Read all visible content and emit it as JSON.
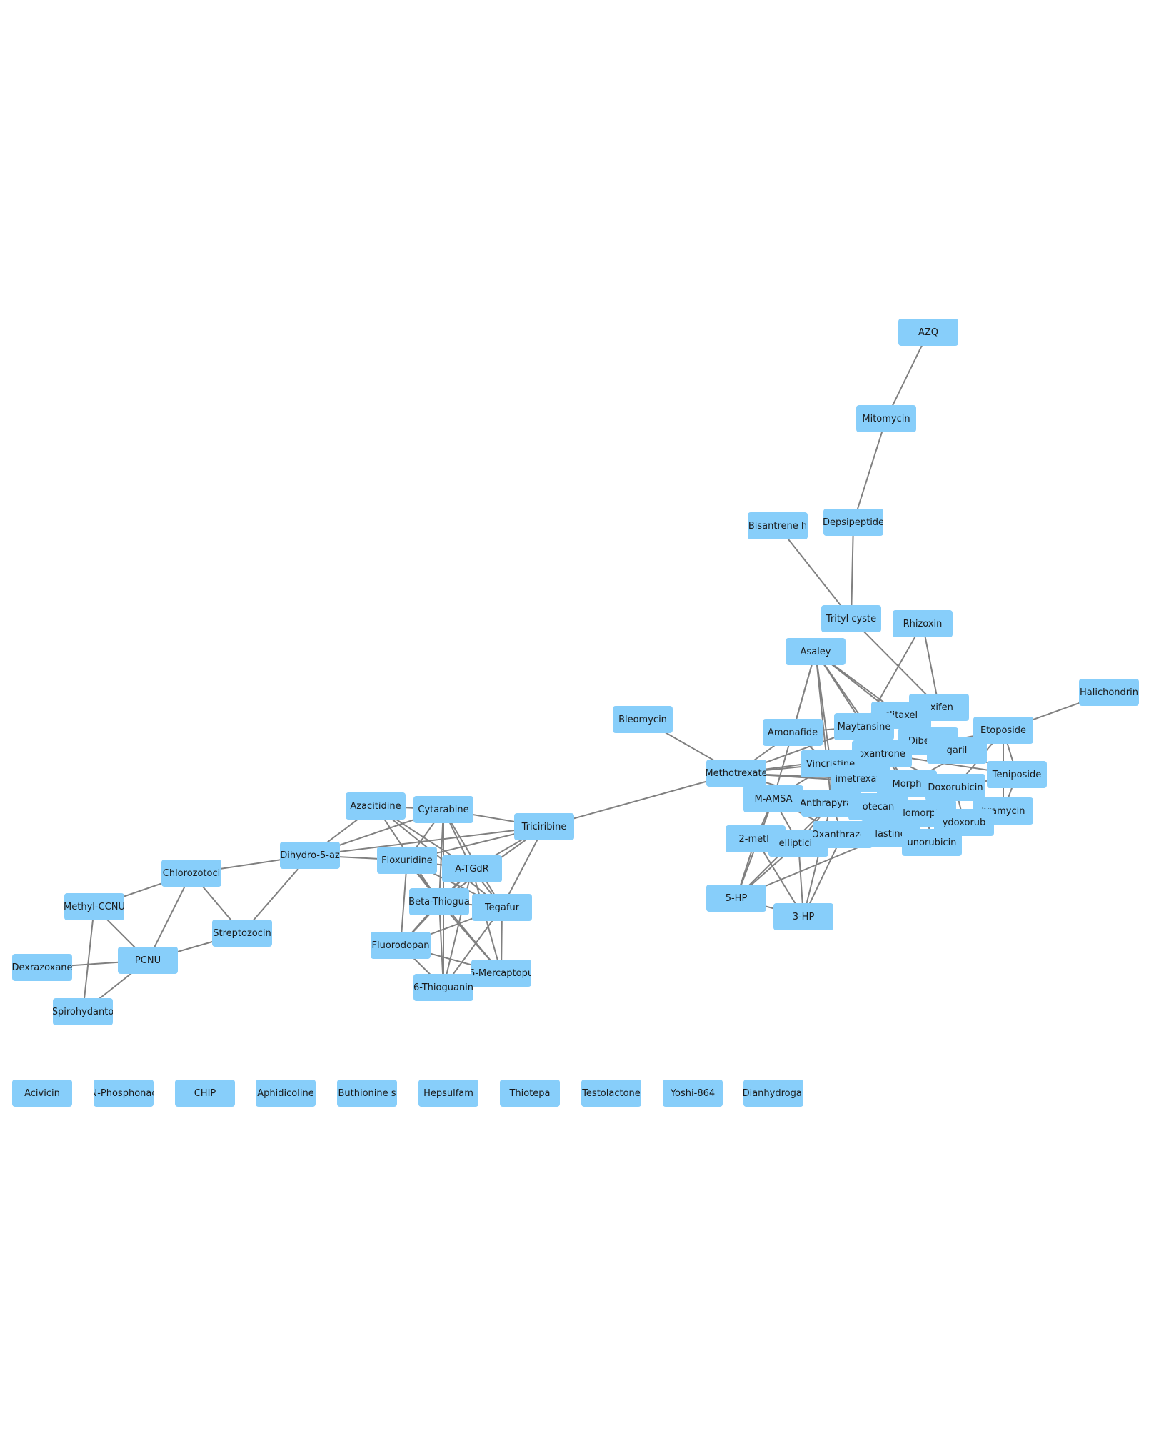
{
  "colors": {
    "node_fill": "#87cefa",
    "edge": "#808080",
    "label": "#1a1a1a"
  },
  "nodes": [
    {
      "id": "azq",
      "label": "AZQ"
    },
    {
      "id": "mitomycin",
      "label": "Mitomycin"
    },
    {
      "id": "bisantrene",
      "label": "Bisantrene h"
    },
    {
      "id": "depsipeptide",
      "label": "Depsipeptide"
    },
    {
      "id": "trityl",
      "label": "Trityl cyste"
    },
    {
      "id": "rhizoxin",
      "label": "Rhizoxin"
    },
    {
      "id": "asaley",
      "label": "Asaley"
    },
    {
      "id": "halichondrin",
      "label": "Halichondrin"
    },
    {
      "id": "bleomycin",
      "label": "Bleomycin"
    },
    {
      "id": "tamoxifen",
      "label": "oxifen"
    },
    {
      "id": "paclitaxel",
      "label": "clitaxel"
    },
    {
      "id": "maytansine",
      "label": "Maytansine"
    },
    {
      "id": "etoposide",
      "label": "Etoposide"
    },
    {
      "id": "amonafide",
      "label": "Amonafide"
    },
    {
      "id": "dibenzyl",
      "label": "Dibenzyl"
    },
    {
      "id": "garil",
      "label": "garil"
    },
    {
      "id": "mitoxantrone",
      "label": "oxantrone"
    },
    {
      "id": "vincristine",
      "label": "Vincristine"
    },
    {
      "id": "teniposide",
      "label": "Teniposide"
    },
    {
      "id": "methotrexate",
      "label": "Methotrexate"
    },
    {
      "id": "trimetrexate",
      "label": "imetrexate"
    },
    {
      "id": "morph",
      "label": "Morph"
    },
    {
      "id": "doxorubicin",
      "label": "Doxorubicin"
    },
    {
      "id": "mamsa",
      "label": "M-AMSA"
    },
    {
      "id": "anthrapyrazole",
      "label": "Anthrapyrazo"
    },
    {
      "id": "topotecan",
      "label": "otecan"
    },
    {
      "id": "morpholino",
      "label": "lomorphol"
    },
    {
      "id": "mithramycin",
      "label": "hramycin"
    },
    {
      "id": "hydroxydoxorubicin",
      "label": "ydoxorub"
    },
    {
      "id": "methoxy2",
      "label": "2-meth"
    },
    {
      "id": "ellipticine",
      "label": "ellipticin"
    },
    {
      "id": "oxanthrazole",
      "label": "Oxanthrazole"
    },
    {
      "id": "vinblastine",
      "label": "lastine"
    },
    {
      "id": "daunorubicin",
      "label": "unorubicin"
    },
    {
      "id": "hp5",
      "label": "5-HP"
    },
    {
      "id": "hp3",
      "label": "3-HP"
    },
    {
      "id": "azacitidine",
      "label": "Azacitidine"
    },
    {
      "id": "cytarabine",
      "label": "Cytarabine"
    },
    {
      "id": "triciribine",
      "label": "Triciribine"
    },
    {
      "id": "dihydro",
      "label": "Dihydro-5-az"
    },
    {
      "id": "floxuridine",
      "label": "Floxuridine"
    },
    {
      "id": "atgdr",
      "label": "A-TGdR"
    },
    {
      "id": "chlorozotocin",
      "label": "Chlorozotoci"
    },
    {
      "id": "betathioguanine",
      "label": "Beta-Thiogua"
    },
    {
      "id": "tegafur",
      "label": "Tegafur"
    },
    {
      "id": "methylccnu",
      "label": "Methyl-CCNU"
    },
    {
      "id": "streptozocin",
      "label": "Streptozocin"
    },
    {
      "id": "fluorodopan",
      "label": "Fluorodopan"
    },
    {
      "id": "pcnu",
      "label": "PCNU"
    },
    {
      "id": "dexrazoxane",
      "label": "Dexrazoxane"
    },
    {
      "id": "mercaptopurine",
      "label": "6-Mercaptopu"
    },
    {
      "id": "thioguanine",
      "label": "6-Thioguanin"
    },
    {
      "id": "spirohydantoin",
      "label": "Spirohydanto"
    },
    {
      "id": "acivicin",
      "label": "Acivicin"
    },
    {
      "id": "nphosphonac",
      "label": "N-Phosphonac"
    },
    {
      "id": "chip",
      "label": "CHIP"
    },
    {
      "id": "aphidicoline",
      "label": "Aphidicoline"
    },
    {
      "id": "buthionine",
      "label": "Buthionine s"
    },
    {
      "id": "hepsulfam",
      "label": "Hepsulfam"
    },
    {
      "id": "thiotepa",
      "label": "Thiotepa"
    },
    {
      "id": "testolactone",
      "label": "Testolactone"
    },
    {
      "id": "yoshi864",
      "label": "Yoshi-864"
    },
    {
      "id": "dianhydrogal",
      "label": "Dianhydrogal"
    }
  ],
  "edges": [
    [
      "azq",
      "mitomycin"
    ],
    [
      "mitomycin",
      "depsipeptide"
    ],
    [
      "depsipeptide",
      "trityl"
    ],
    [
      "bisantrene",
      "trityl"
    ],
    [
      "trityl",
      "tamoxifen"
    ],
    [
      "rhizoxin",
      "tamoxifen"
    ],
    [
      "rhizoxin",
      "maytansine"
    ],
    [
      "halichondrin",
      "etoposide"
    ],
    [
      "bleomycin",
      "methotrexate"
    ],
    [
      "methotrexate",
      "triciribine"
    ],
    [
      "asaley",
      "amonafide"
    ],
    [
      "asaley",
      "paclitaxel"
    ],
    [
      "asaley",
      "dibenzyl"
    ],
    [
      "asaley",
      "vincristine"
    ],
    [
      "asaley",
      "mitoxantrone"
    ],
    [
      "asaley",
      "morph"
    ],
    [
      "asaley",
      "mamsa"
    ],
    [
      "asaley",
      "anthrapyrazole"
    ],
    [
      "methotrexate",
      "amonafide"
    ],
    [
      "methotrexate",
      "maytansine"
    ],
    [
      "methotrexate",
      "vincristine"
    ],
    [
      "methotrexate",
      "trimetrexate"
    ],
    [
      "methotrexate",
      "mamsa"
    ],
    [
      "methotrexate",
      "anthrapyrazole"
    ],
    [
      "methotrexate",
      "mitoxantrone"
    ],
    [
      "methotrexate",
      "doxorubicin"
    ],
    [
      "amonafide",
      "maytansine"
    ],
    [
      "amonafide",
      "vincristine"
    ],
    [
      "maytansine",
      "paclitaxel"
    ],
    [
      "paclitaxel",
      "tamoxifen"
    ],
    [
      "paclitaxel",
      "dibenzyl"
    ],
    [
      "dibenzyl",
      "garil"
    ],
    [
      "garil",
      "etoposide"
    ],
    [
      "garil",
      "teniposide"
    ],
    [
      "etoposide",
      "teniposide"
    ],
    [
      "etoposide",
      "doxorubicin"
    ],
    [
      "etoposide",
      "mitoxantrone"
    ],
    [
      "etoposide",
      "morph"
    ],
    [
      "etoposide",
      "mithramycin"
    ],
    [
      "teniposide",
      "doxorubicin"
    ],
    [
      "teniposide",
      "mithramycin"
    ],
    [
      "teniposide",
      "mitoxantrone"
    ],
    [
      "mitoxantrone",
      "vincristine"
    ],
    [
      "mitoxantrone",
      "trimetrexate"
    ],
    [
      "mitoxantrone",
      "morph"
    ],
    [
      "mitoxantrone",
      "doxorubicin"
    ],
    [
      "vincristine",
      "trimetrexate"
    ],
    [
      "vincristine",
      "mamsa"
    ],
    [
      "vincristine",
      "anthrapyrazole"
    ],
    [
      "vincristine",
      "vinblastine"
    ],
    [
      "trimetrexate",
      "morph"
    ],
    [
      "morph",
      "doxorubicin"
    ],
    [
      "doxorubicin",
      "hydroxydoxorubicin"
    ],
    [
      "doxorubicin",
      "mithramycin"
    ],
    [
      "doxorubicin",
      "morpholino"
    ],
    [
      "doxorubicin",
      "daunorubicin"
    ],
    [
      "mamsa",
      "anthrapyrazole"
    ],
    [
      "mamsa",
      "methoxy2"
    ],
    [
      "mamsa",
      "ellipticine"
    ],
    [
      "mamsa",
      "oxanthrazole"
    ],
    [
      "anthrapyrazole",
      "topotecan"
    ],
    [
      "anthrapyrazole",
      "oxanthrazole"
    ],
    [
      "anthrapyrazole",
      "ellipticine"
    ],
    [
      "topotecan",
      "morpholino"
    ],
    [
      "topotecan",
      "vinblastine"
    ],
    [
      "morpholino",
      "hydroxydoxorubicin"
    ],
    [
      "morpholino",
      "daunorubicin"
    ],
    [
      "hydroxydoxorubicin",
      "daunorubicin"
    ],
    [
      "hydroxydoxorubicin",
      "mithramycin"
    ],
    [
      "oxanthrazole",
      "vinblastine"
    ],
    [
      "oxanthrazole",
      "daunorubicin"
    ],
    [
      "vinblastine",
      "daunorubicin"
    ],
    [
      "methoxy2",
      "ellipticine"
    ],
    [
      "ellipticine",
      "oxanthrazole"
    ],
    [
      "methoxy2",
      "hp5"
    ],
    [
      "ellipticine",
      "hp5"
    ],
    [
      "ellipticine",
      "hp3"
    ],
    [
      "hp5",
      "hp3"
    ],
    [
      "anthrapyrazole",
      "hp3"
    ],
    [
      "oxanthrazole",
      "hp3"
    ],
    [
      "mamsa",
      "hp5"
    ],
    [
      "methoxy2",
      "hp3"
    ],
    [
      "anthrapyrazole",
      "hp5"
    ],
    [
      "vinblastine",
      "hp5"
    ],
    [
      "azacitidine",
      "cytarabine"
    ],
    [
      "azacitidine",
      "dihydro"
    ],
    [
      "azacitidine",
      "atgdr"
    ],
    [
      "azacitidine",
      "tegafur"
    ],
    [
      "azacitidine",
      "betathioguanine"
    ],
    [
      "cytarabine",
      "triciribine"
    ],
    [
      "cytarabine",
      "dihydro"
    ],
    [
      "cytarabine",
      "floxuridine"
    ],
    [
      "cytarabine",
      "atgdr"
    ],
    [
      "cytarabine",
      "tegafur"
    ],
    [
      "cytarabine",
      "betathioguanine"
    ],
    [
      "cytarabine",
      "thioguanine"
    ],
    [
      "triciribine",
      "dihydro"
    ],
    [
      "triciribine",
      "floxuridine"
    ],
    [
      "triciribine",
      "atgdr"
    ],
    [
      "triciribine",
      "tegafur"
    ],
    [
      "triciribine",
      "betathioguanine"
    ],
    [
      "dihydro",
      "floxuridine"
    ],
    [
      "dihydro",
      "chlorozotocin"
    ],
    [
      "dihydro",
      "streptozocin"
    ],
    [
      "floxuridine",
      "atgdr"
    ],
    [
      "floxuridine",
      "betathioguanine"
    ],
    [
      "floxuridine",
      "tegafur"
    ],
    [
      "floxuridine",
      "fluorodopan"
    ],
    [
      "floxuridine",
      "mercaptopurine"
    ],
    [
      "atgdr",
      "betathioguanine"
    ],
    [
      "atgdr",
      "tegafur"
    ],
    [
      "atgdr",
      "mercaptopurine"
    ],
    [
      "atgdr",
      "thioguanine"
    ],
    [
      "atgdr",
      "fluorodopan"
    ],
    [
      "betathioguanine",
      "tegafur"
    ],
    [
      "betathioguanine",
      "thioguanine"
    ],
    [
      "betathioguanine",
      "mercaptopurine"
    ],
    [
      "betathioguanine",
      "fluorodopan"
    ],
    [
      "tegafur",
      "mercaptopurine"
    ],
    [
      "tegafur",
      "fluorodopan"
    ],
    [
      "tegafur",
      "thioguanine"
    ],
    [
      "fluorodopan",
      "thioguanine"
    ],
    [
      "fluorodopan",
      "mercaptopurine"
    ],
    [
      "mercaptopurine",
      "thioguanine"
    ],
    [
      "chlorozotocin",
      "methylccnu"
    ],
    [
      "chlorozotocin",
      "streptozocin"
    ],
    [
      "chlorozotocin",
      "pcnu"
    ],
    [
      "methylccnu",
      "pcnu"
    ],
    [
      "methylccnu",
      "spirohydantoin"
    ],
    [
      "pcnu",
      "dexrazoxane"
    ],
    [
      "pcnu",
      "spirohydantoin"
    ],
    [
      "pcnu",
      "streptozocin"
    ]
  ]
}
